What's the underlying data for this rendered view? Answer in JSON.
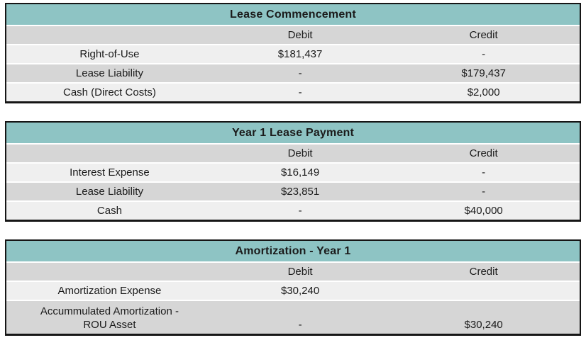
{
  "colors": {
    "header_teal": "#8ec4c4",
    "row_gray": "#d6d6d6",
    "row_light": "#efefef",
    "table_border": "#161616",
    "text": "#1b1b1b"
  },
  "tables": [
    {
      "title": "Lease Commencement",
      "columns": {
        "debit": "Debit",
        "credit": "Credit"
      },
      "rows": [
        {
          "account": "Right-of-Use",
          "debit": "$181,437",
          "credit": "-"
        },
        {
          "account": "Lease Liability",
          "debit": "-",
          "credit": "$179,437"
        },
        {
          "account": "Cash (Direct Costs)",
          "debit": "-",
          "credit": "$2,000"
        }
      ]
    },
    {
      "title": "Year 1 Lease Payment",
      "columns": {
        "debit": "Debit",
        "credit": "Credit"
      },
      "rows": [
        {
          "account": "Interest Expense",
          "debit": "$16,149",
          "credit": "-"
        },
        {
          "account": "Lease Liability",
          "debit": "$23,851",
          "credit": "-"
        },
        {
          "account": "Cash",
          "debit": "-",
          "credit": "$40,000"
        }
      ]
    },
    {
      "title": "Amortization - Year 1",
      "columns": {
        "debit": "Debit",
        "credit": "Credit"
      },
      "rows": [
        {
          "account": "Amortization Expense",
          "debit": "$30,240",
          "credit": ""
        },
        {
          "account": "Accummulated Amortization - ROU Asset",
          "debit": "-",
          "credit": "$30,240"
        }
      ]
    }
  ]
}
